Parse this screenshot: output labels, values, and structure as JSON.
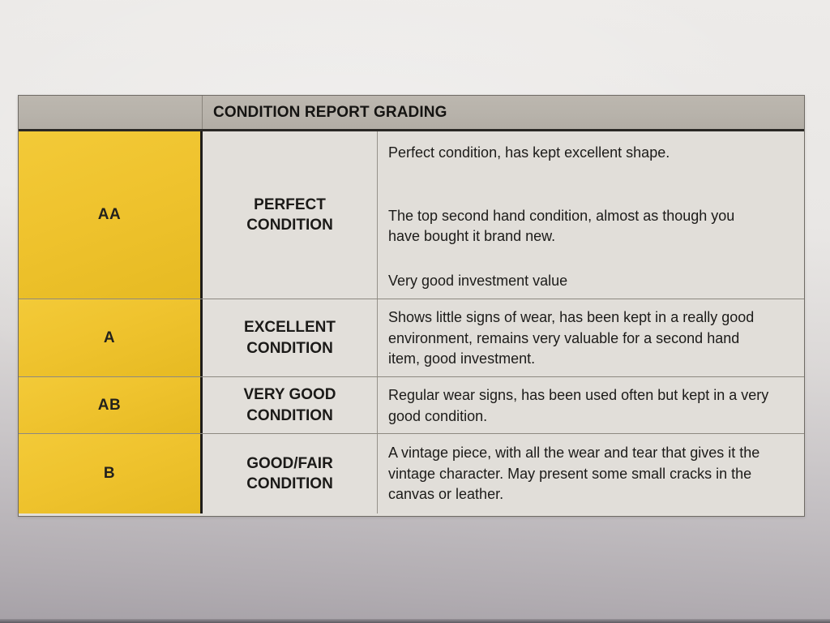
{
  "table": {
    "title": "CONDITION REPORT GRADING",
    "rows": [
      {
        "grade": "AA",
        "condition": "PERFECT CONDITION",
        "paragraphs": [
          "Perfect condition, has kept excellent shape.",
          "The top second hand condition, almost as though you have bought it brand new.",
          "Very good investment value"
        ]
      },
      {
        "grade": "A",
        "condition": "EXCELLENT CONDITION",
        "paragraphs": [
          "Shows little signs of wear, has been kept in a really good environment, remains very valuable for a second hand item, good investment."
        ]
      },
      {
        "grade": "AB",
        "condition": "VERY GOOD CONDITION",
        "paragraphs": [
          "Regular wear signs, has been used often but kept in a very good condition."
        ]
      },
      {
        "grade": "B",
        "condition": "GOOD/FAIR CONDITION",
        "paragraphs": [
          "A vintage piece, with all the wear and tear that gives it the vintage character. May present some small cracks in the canvas or leather."
        ]
      }
    ],
    "colors": {
      "grade_cell_yellow": "#efc32e",
      "header_bar_gray": "#b8b3ab",
      "cell_background": "#e2dfda",
      "text": "#1d1c1a"
    }
  }
}
